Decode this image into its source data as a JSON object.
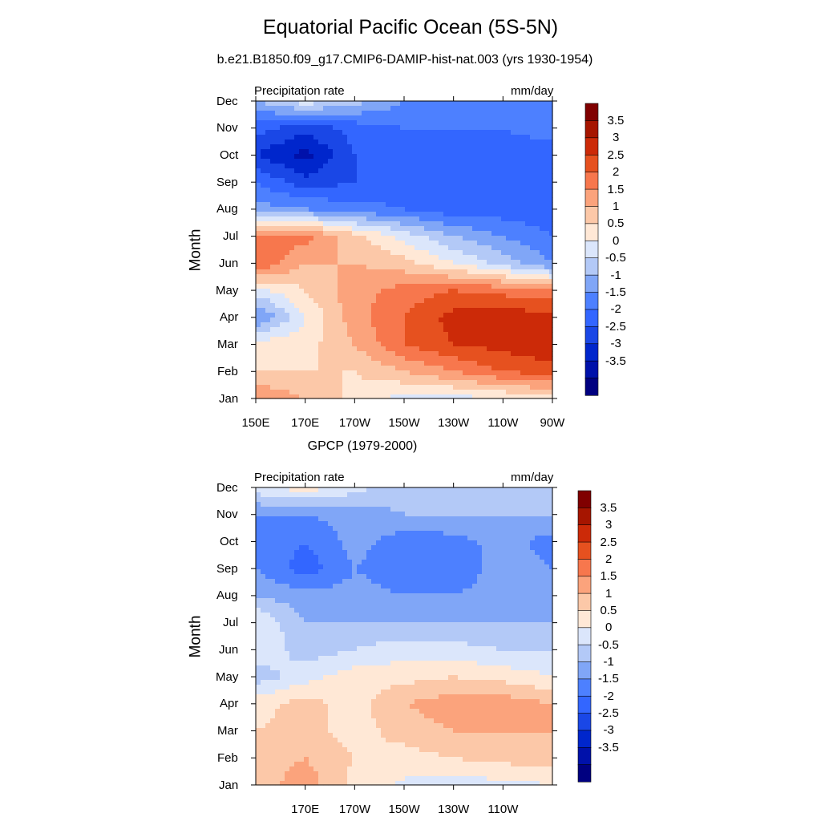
{
  "figure": {
    "title": "Equatorial Pacific Ocean (5S-5N)"
  },
  "chart_data": [
    {
      "type": "heatmap",
      "title": "b.e21.B1850.f09_g17.CMIP6-DAMIP-hist-nat.003 (yrs 1930-1954)",
      "left_label": "Precipitation rate",
      "right_label": "mm/day",
      "ylabel": "Month",
      "xlabel": "",
      "x_ticks": [
        "150E",
        "170E",
        "170W",
        "150W",
        "130W",
        "110W",
        "90W"
      ],
      "y_ticks": [
        "Jan",
        "Feb",
        "Mar",
        "Apr",
        "May",
        "Jun",
        "Jul",
        "Aug",
        "Sep",
        "Oct",
        "Nov",
        "Dec"
      ],
      "colorbar_labels": [
        "3.5",
        "3",
        "2.5",
        "2",
        "1.5",
        "1",
        "0.5",
        "0",
        "-0.5",
        "-1",
        "-1.5",
        "-2",
        "-2.5",
        "-3",
        "-3.5"
      ],
      "x_lon": [
        150,
        170,
        190,
        210,
        230,
        250,
        270
      ],
      "values": [
        [
          2.0,
          1.5,
          0.8,
          0.3,
          0.3,
          0.5,
          0.8
        ],
        [
          1.0,
          1.0,
          1.0,
          1.5,
          2.0,
          2.5,
          2.8
        ],
        [
          0.8,
          0.8,
          1.5,
          2.5,
          3.0,
          3.2,
          3.4
        ],
        [
          -1.2,
          0.5,
          1.8,
          2.5,
          3.2,
          3.3,
          3.3
        ],
        [
          0.3,
          1.0,
          1.8,
          2.2,
          2.5,
          2.3,
          2.0
        ],
        [
          2.5,
          1.5,
          1.5,
          1.2,
          0.5,
          -0.2,
          -1.0
        ],
        [
          2.3,
          2.2,
          1.2,
          0.3,
          -0.5,
          -1.0,
          -1.5
        ],
        [
          -0.8,
          -1.0,
          -1.3,
          -1.5,
          -1.8,
          -1.8,
          -1.8
        ],
        [
          -1.5,
          -2.3,
          -2.0,
          -1.8,
          -1.8,
          -1.8,
          -1.8
        ],
        [
          -2.5,
          -3.2,
          -2.0,
          -1.8,
          -1.8,
          -1.8,
          -1.8
        ],
        [
          -1.8,
          -2.3,
          -1.8,
          -1.5,
          -1.5,
          -1.5,
          -1.2
        ],
        [
          -0.5,
          0.3,
          -0.3,
          -1.0,
          -1.0,
          -1.2,
          -1.3
        ]
      ]
    },
    {
      "type": "heatmap",
      "title": "GPCP (1979-2000)",
      "left_label": "Precipitation rate",
      "right_label": "mm/day",
      "ylabel": "Month",
      "xlabel": "",
      "x_ticks": [
        "170E",
        "170W",
        "150W",
        "130W",
        "110W"
      ],
      "y_ticks": [
        "Jan",
        "Feb",
        "Mar",
        "Apr",
        "May",
        "Jun",
        "Jul",
        "Aug",
        "Sep",
        "Oct",
        "Nov",
        "Dec"
      ],
      "colorbar_labels": [
        "3.5",
        "3",
        "2.5",
        "2",
        "1.5",
        "1",
        "0.5",
        "0",
        "-0.5",
        "-1",
        "-1.5",
        "-2",
        "-2.5",
        "-3",
        "-3.5"
      ],
      "x_lon": [
        150,
        170,
        190,
        210,
        230,
        250,
        270
      ],
      "values": [
        [
          1.2,
          1.8,
          0.8,
          0.4,
          0.3,
          0.3,
          0.5
        ],
        [
          1.2,
          1.5,
          1.0,
          0.8,
          1.0,
          1.2,
          1.2
        ],
        [
          1.0,
          1.2,
          0.8,
          1.2,
          1.5,
          1.5,
          1.5
        ],
        [
          0.8,
          1.2,
          0.8,
          1.5,
          1.8,
          1.8,
          1.5
        ],
        [
          -0.3,
          0.3,
          0.8,
          0.8,
          1.0,
          0.8,
          0.5
        ],
        [
          0.5,
          -0.3,
          0.0,
          0.3,
          0.2,
          0.0,
          0.0
        ],
        [
          0.5,
          -0.5,
          -0.5,
          -0.5,
          -0.5,
          -0.5,
          -0.5
        ],
        [
          -0.5,
          -0.8,
          -0.8,
          -1.0,
          -1.0,
          -0.8,
          -0.8
        ],
        [
          -1.0,
          -1.8,
          -1.0,
          -1.3,
          -1.3,
          -0.8,
          -1.0
        ],
        [
          -1.0,
          -1.5,
          -0.8,
          -1.3,
          -1.2,
          -0.8,
          -1.2
        ],
        [
          -1.0,
          -1.0,
          -0.8,
          -0.5,
          -0.5,
          -0.5,
          -0.5
        ],
        [
          0.3,
          0.8,
          0.2,
          -0.3,
          -0.3,
          -0.3,
          -0.3
        ]
      ]
    }
  ],
  "colors": {
    "levels": [
      "#000080",
      "#0011aa",
      "#0026cc",
      "#1a47e6",
      "#3366ff",
      "#4d80ff",
      "#80a6f7",
      "#b3c9f7",
      "#dbe6fb",
      "#ffe8d6",
      "#fcc8a8",
      "#fba37c",
      "#f7774d",
      "#e6511f",
      "#cc2a08",
      "#a61500",
      "#800000"
    ]
  }
}
